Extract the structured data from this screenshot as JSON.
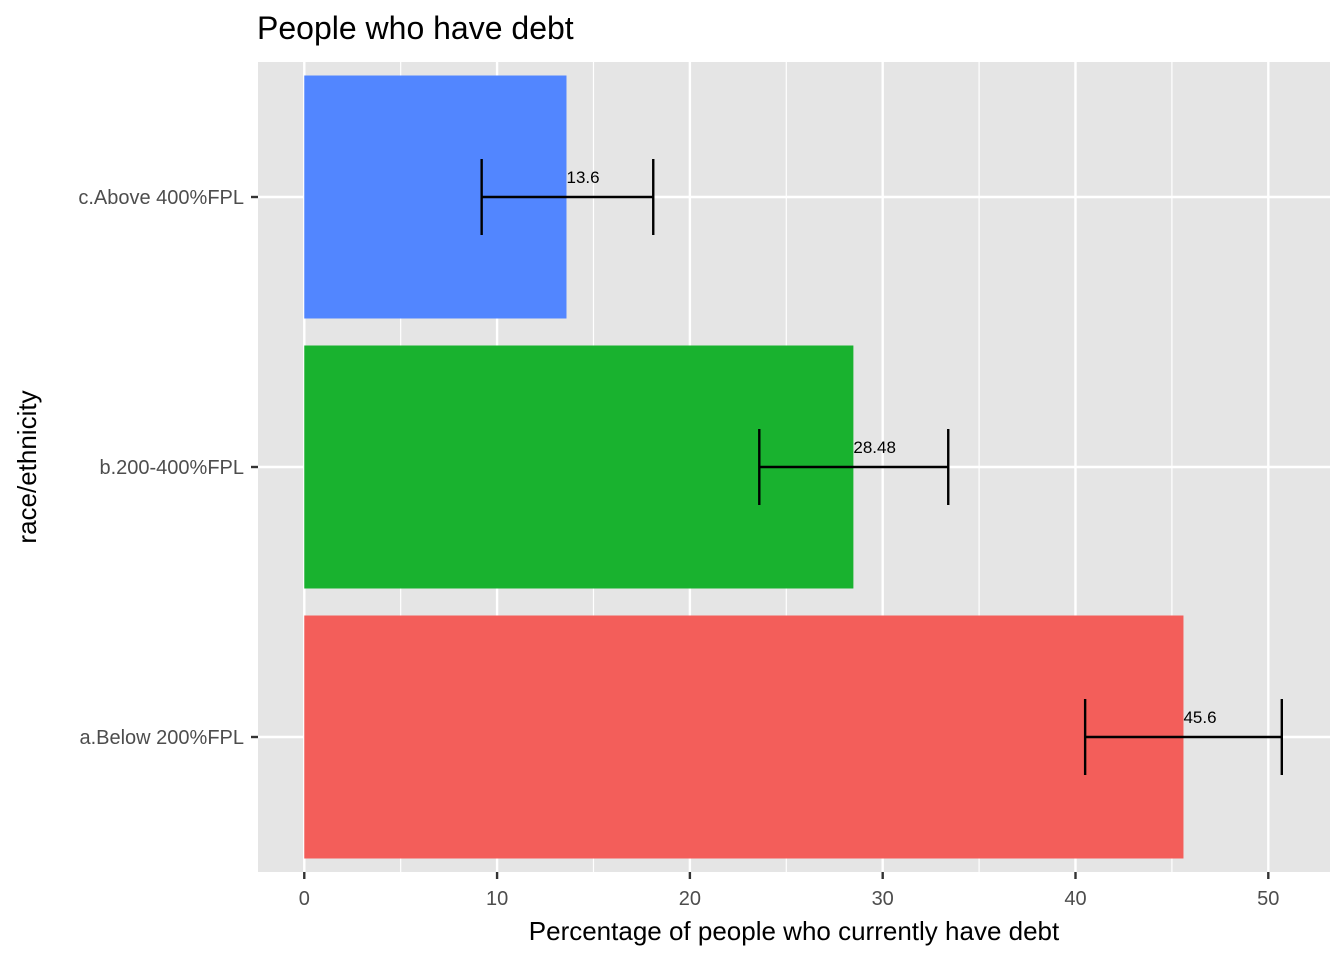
{
  "chart_data": {
    "type": "bar",
    "orientation": "horizontal",
    "title": "People who have debt",
    "xlabel": "Percentage of people who currently have debt",
    "ylabel": "race/ethnicity",
    "xlim": [
      -2.4,
      53.2
    ],
    "x_ticks": [
      0,
      10,
      20,
      30,
      40,
      50
    ],
    "x_tick_labels": [
      "0",
      "10",
      "20",
      "30",
      "40",
      "50"
    ],
    "grid": true,
    "legend": "none",
    "categories": [
      "a.Below 200%FPL",
      "b.200-400%FPL",
      "c.Above 400%FPL"
    ],
    "values": [
      45.6,
      28.48,
      13.6
    ],
    "error_low": [
      40.5,
      23.6,
      9.2
    ],
    "error_high": [
      50.7,
      33.4,
      18.1
    ],
    "data_labels": [
      "45.6",
      "28.48",
      "13.6"
    ],
    "colors": [
      "#F35E5A",
      "#19B22F",
      "#5286FF"
    ],
    "panel_background": "#E5E5E5",
    "grid_color": "#FFFFFF"
  }
}
